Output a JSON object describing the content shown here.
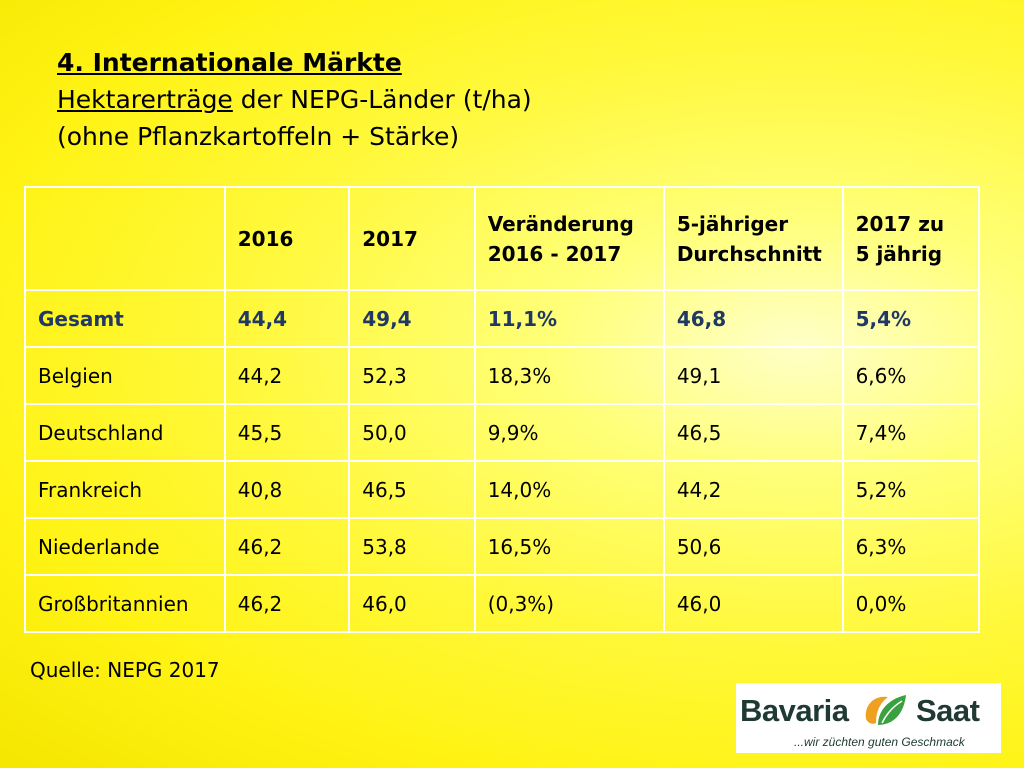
{
  "title": {
    "line1": "4. Internationale Märkte",
    "line2_underlined": "Hektarerträge",
    "line2_rest": " der NEPG-Länder (t/ha)",
    "line3": "(ohne Pflanzkartoffeln + Stärke)"
  },
  "table": {
    "headers": [
      {
        "l1": "",
        "l2": ""
      },
      {
        "l1": "2016",
        "l2": ""
      },
      {
        "l1": "2017",
        "l2": ""
      },
      {
        "l1": "Veränderung",
        "l2": "2016 - 2017"
      },
      {
        "l1": "5-jähriger",
        "l2": "Durchschnitt"
      },
      {
        "l1": "2017 zu",
        "l2": "5 jährig"
      }
    ],
    "rows": [
      [
        "Gesamt",
        "44,4",
        "49,4",
        "11,1%",
        "46,8",
        "5,4%"
      ],
      [
        "Belgien",
        "44,2",
        "52,3",
        "18,3%",
        "49,1",
        "6,6%"
      ],
      [
        "Deutschland",
        "45,5",
        "50,0",
        "9,9%",
        "46,5",
        "7,4%"
      ],
      [
        "Frankreich",
        "40,8",
        "46,5",
        "14,0%",
        "44,2",
        "5,2%"
      ],
      [
        "Niederlande",
        "46,2",
        "53,8",
        "16,5%",
        "50,6",
        "6,3%"
      ],
      [
        "Großbritannien",
        "46,2",
        "46,0",
        "(0,3%)",
        "46,0",
        "0,0%"
      ]
    ]
  },
  "source": "Quelle: NEPG 2017",
  "logo": {
    "word1": "Bavaria",
    "word2": "Saat",
    "tagline": "...wir züchten guten Geschmack",
    "colors": {
      "text": "#1f3a33",
      "leaf_orange": "#f0a020",
      "leaf_green": "#3aa040"
    }
  },
  "colors": {
    "background": "#fff314",
    "total_row_text": "#1f3864",
    "grid": "#ffffff"
  }
}
